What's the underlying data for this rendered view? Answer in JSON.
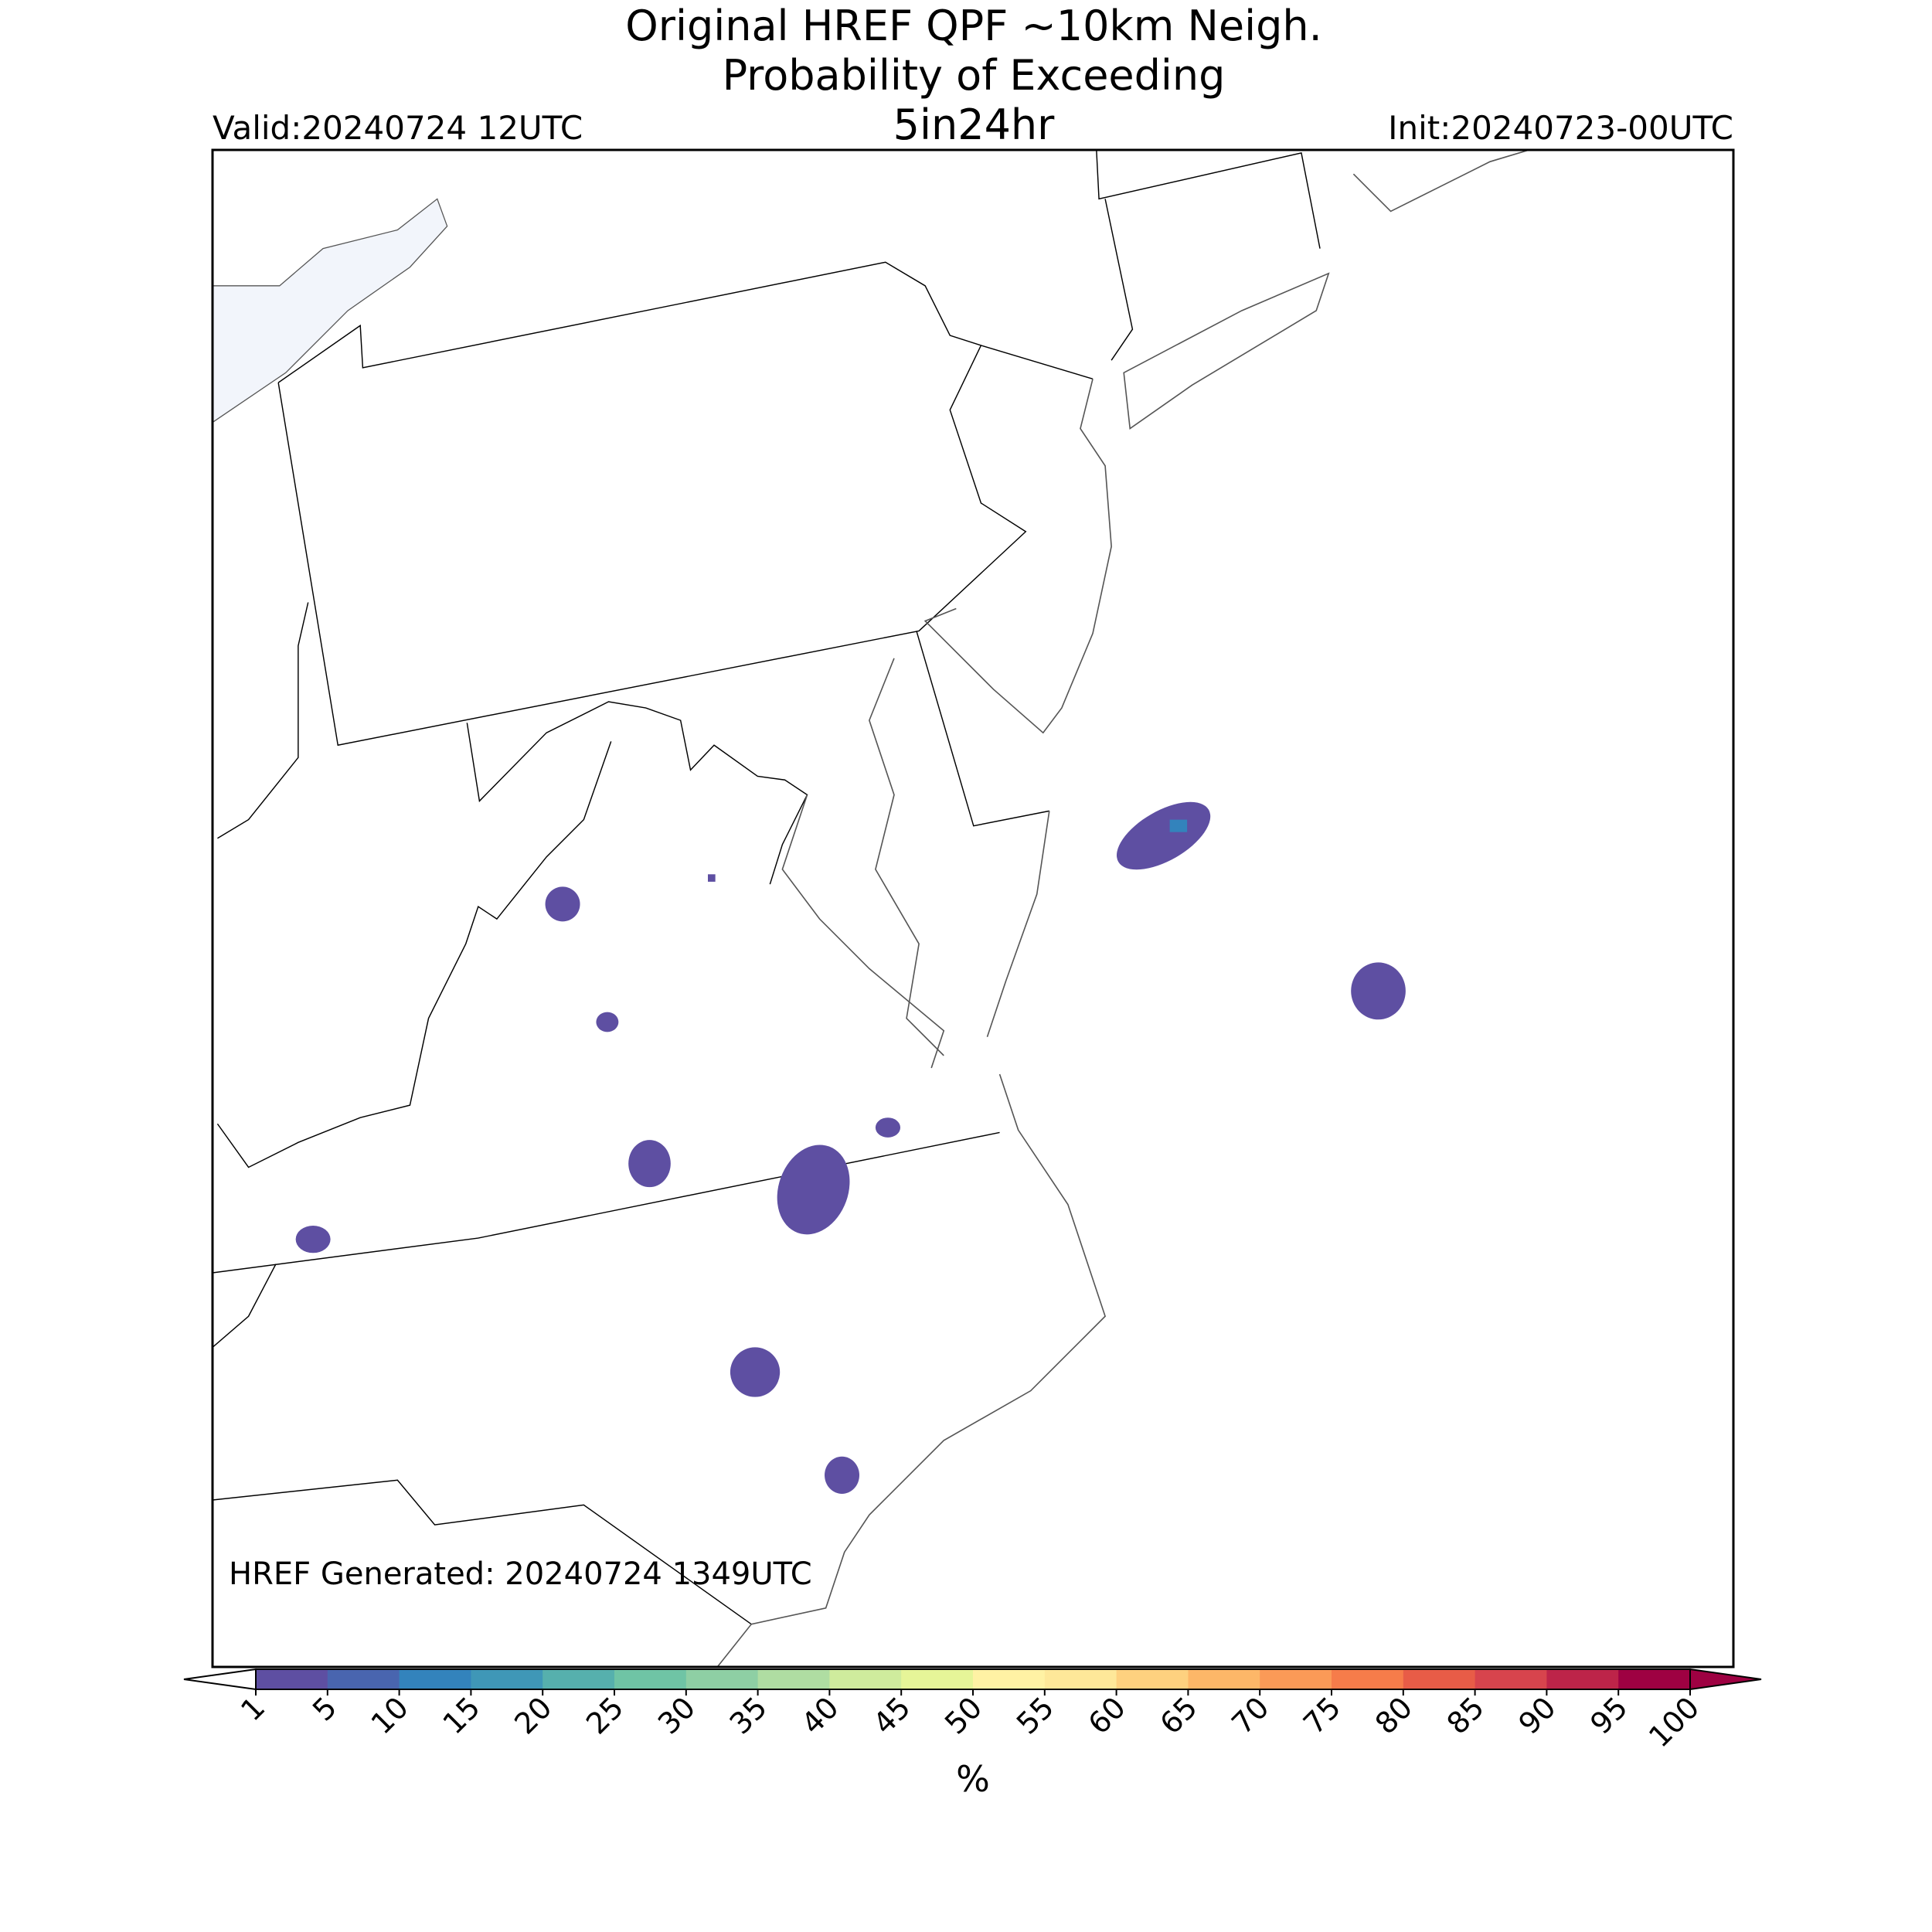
{
  "header": {
    "title_lines": [
      "Original HREF QPF ~10km Neigh.",
      "Probability of Exceeding",
      "5in24hr"
    ],
    "valid": "Valid:20240724 12UTC",
    "init": "Init:20240723-00UTC"
  },
  "map": {
    "generated": "HREF Generated: 20240724 1349UTC"
  },
  "colorbar": {
    "levels": [
      1,
      5,
      10,
      15,
      20,
      25,
      30,
      35,
      40,
      45,
      50,
      55,
      60,
      65,
      70,
      75,
      80,
      85,
      90,
      95,
      100
    ],
    "colors": [
      "#5e4fa2",
      "#4965af",
      "#3383bc",
      "#3f97b7",
      "#56b0ad",
      "#6fc4a5",
      "#8ecfa4",
      "#afdda2",
      "#cfec9d",
      "#e6f598",
      "#fff2a4",
      "#fee899",
      "#fed17f",
      "#fdb768",
      "#fb9a57",
      "#f67c4a",
      "#e85c47",
      "#d7444d",
      "#bd2449",
      "#9e0142"
    ],
    "under_color": "#ffffff",
    "over_color": "#9e0142",
    "label": "%"
  }
}
